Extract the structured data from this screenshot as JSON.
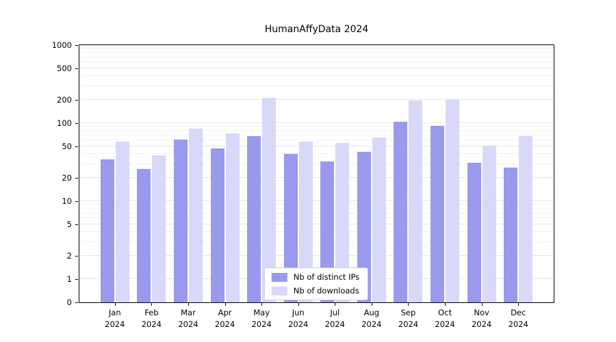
{
  "chart_data": {
    "type": "bar",
    "title": "HumanAffyData 2024",
    "scale": "symlog",
    "ylim": [
      0,
      1000
    ],
    "yticks": [
      0,
      1,
      2,
      5,
      10,
      20,
      50,
      100,
      200,
      500,
      1000
    ],
    "grid": true,
    "legend_position": "lower center",
    "categories": [
      {
        "month": "Jan",
        "year": "2024"
      },
      {
        "month": "Feb",
        "year": "2024"
      },
      {
        "month": "Mar",
        "year": "2024"
      },
      {
        "month": "Apr",
        "year": "2024"
      },
      {
        "month": "May",
        "year": "2024"
      },
      {
        "month": "Jun",
        "year": "2024"
      },
      {
        "month": "Jul",
        "year": "2024"
      },
      {
        "month": "Aug",
        "year": "2024"
      },
      {
        "month": "Sep",
        "year": "2024"
      },
      {
        "month": "Oct",
        "year": "2024"
      },
      {
        "month": "Nov",
        "year": "2024"
      },
      {
        "month": "Dec",
        "year": "2024"
      }
    ],
    "series": [
      {
        "key": "distinct_ips",
        "name": "Nb of distinct IPs",
        "color": "#9999ee",
        "values": [
          34,
          26,
          62,
          47,
          68,
          40,
          32,
          43,
          105,
          92,
          31,
          27
        ]
      },
      {
        "key": "downloads",
        "name": "Nb of downloads",
        "color": "#d8d8f8",
        "values": [
          58,
          39,
          85,
          74,
          210,
          58,
          56,
          65,
          195,
          200,
          51,
          68
        ]
      }
    ],
    "colors": {
      "grid_major": "#e6e6e6",
      "grid_minor": "#f2f2f2",
      "axis": "#000000",
      "legend_border": "#cccccc",
      "background": "#ffffff"
    }
  }
}
